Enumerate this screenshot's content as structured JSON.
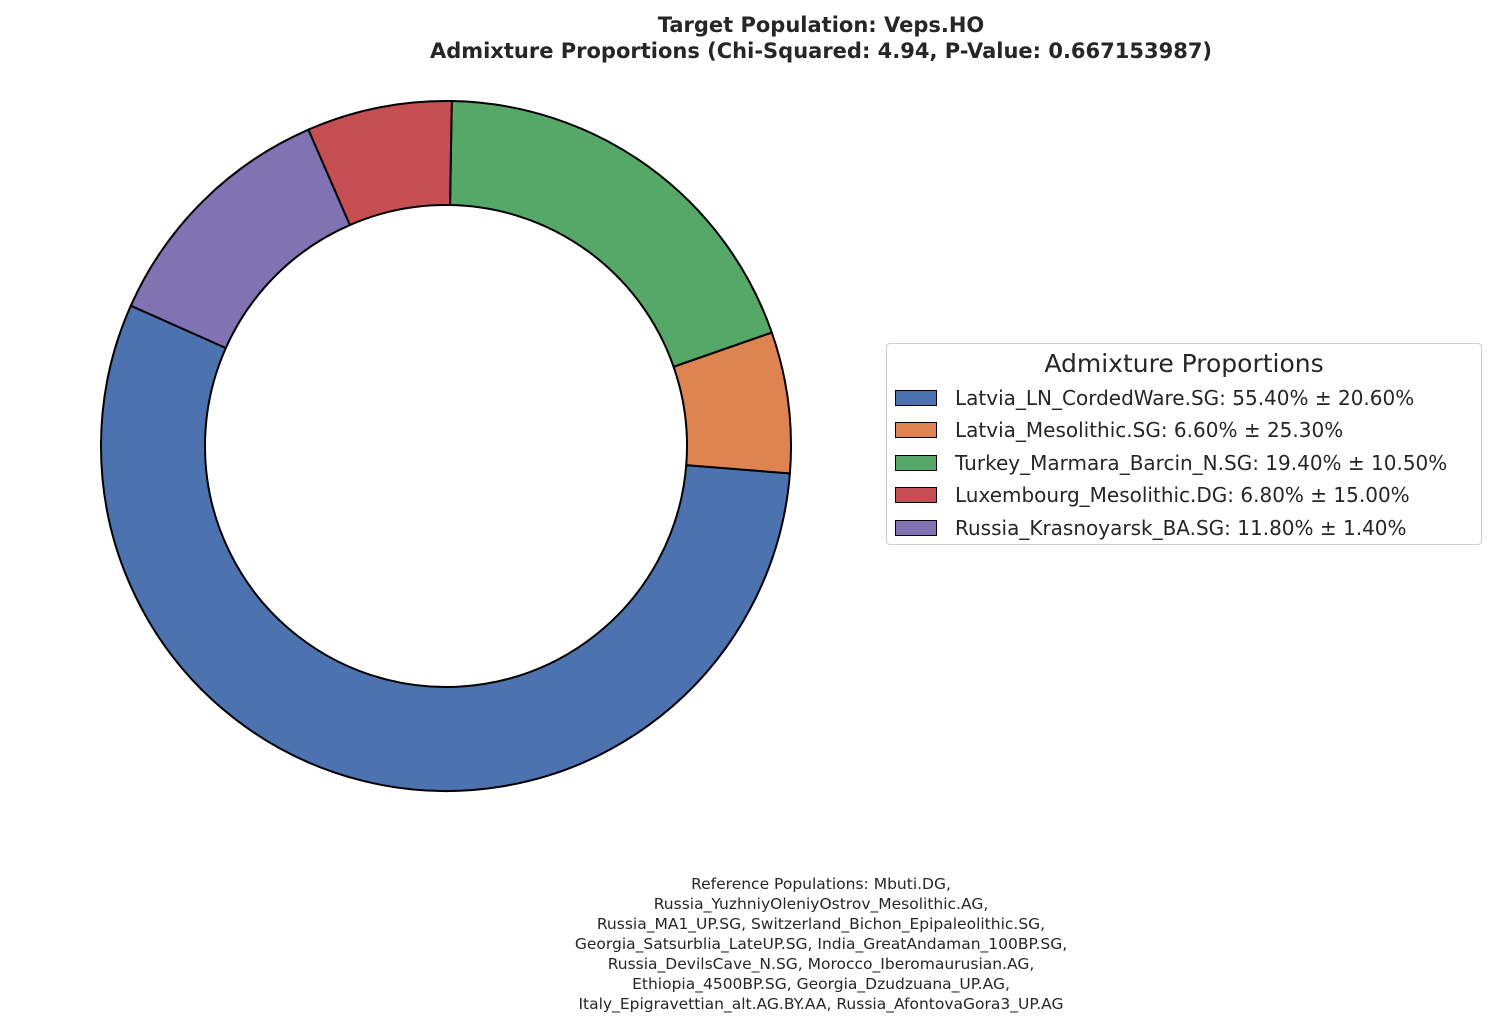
{
  "chart_data": {
    "type": "pie",
    "title_lines": [
      "Target Population: Veps.HO",
      "Admixture Proportions (Chi-Squared: 4.94, P-Value: 0.667153987)"
    ],
    "legend_title": "Admixture Proportions",
    "legend_placement": "right",
    "slices": [
      {
        "label": "Latvia_LN_CordedWare.SG: 55.40% ± 20.60%",
        "value": 55.4,
        "error": 20.6,
        "color": "#4c72b0"
      },
      {
        "label": "Latvia_Mesolithic.SG: 6.60% ± 25.30%",
        "value": 6.6,
        "error": 25.3,
        "color": "#dd8452"
      },
      {
        "label": "Turkey_Marmara_Barcin_N.SG: 19.40% ± 10.50%",
        "value": 19.4,
        "error": 10.5,
        "color": "#55a868"
      },
      {
        "label": "Luxembourg_Mesolithic.DG: 6.80% ± 15.00%",
        "value": 6.8,
        "error": 15.0,
        "color": "#c44e52"
      },
      {
        "label": "Russia_Krasnoyarsk_BA.SG: 11.80% ± 1.40%",
        "value": 11.8,
        "error": 1.4,
        "color": "#8172b3"
      }
    ],
    "footnote_lines": [
      "Reference Populations: Mbuti.DG,",
      "Russia_YuzhniyOleniyOstrov_Mesolithic.AG,",
      "Russia_MA1_UP.SG, Switzerland_Bichon_Epipaleolithic.SG,",
      "Georgia_Satsurblia_LateUP.SG, India_GreatAndaman_100BP.SG,",
      "Russia_DevilsCave_N.SG, Morocco_Iberomaurusian.AG,",
      "Ethiopia_4500BP.SG, Georgia_Dzudzuana_UP.AG,",
      "Italy_Epigravettian_alt.AG.BY.AA, Russia_AfontovaGora3_UP.AG"
    ]
  }
}
